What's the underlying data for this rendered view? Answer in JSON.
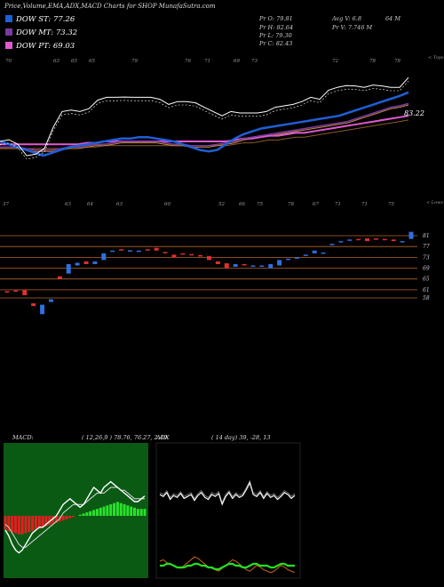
{
  "header": {
    "title": "Price,Volume,EMA,ADX,MACD Charts for SHOP MunafaSutra.com"
  },
  "legend": [
    {
      "label": "DOW ST: 77.26",
      "color": "#1f5fd6"
    },
    {
      "label": "DOW MT: 73.32",
      "color": "#7a3aa0"
    },
    {
      "label": "DOW PT: 69.03",
      "color": "#e05ad0"
    }
  ],
  "stats": {
    "pr_o": "Pr  O: 79.81",
    "pr_h": "Pr  H: 82.64",
    "pr_l": "Pr  L: 79.30",
    "pr_c": "Pr  C: 82.43",
    "avg_v": "Avg V: 6.8",
    "m1": "64  M",
    "pr_v": "Pr  V: 7.746  M"
  },
  "top_chart": {
    "right_tag": "< Tops",
    "price_label": "83.22",
    "top_labels": [
      "70",
      "63",
      "65",
      "65",
      "79",
      "76",
      "71",
      "69",
      "73",
      "72",
      "78",
      "78"
    ],
    "bottom_tag": "< Lows",
    "bottom_labels": [
      "37",
      "63",
      "64",
      "63",
      "60",
      "52",
      "66",
      "75",
      "78",
      "67",
      "71",
      "71",
      "75"
    ]
  },
  "candles_chart": {
    "right_levels": [
      "81",
      "77",
      "73",
      "69",
      "65",
      "61",
      "58"
    ]
  },
  "macd": {
    "label": "MACD:",
    "values": "( 12,26,9 ) 78.76,  76.27,  2.49"
  },
  "adx": {
    "label": "ADX",
    "values": "( 14  day) 39,  -28,  13"
  },
  "chart_data": [
    {
      "type": "line",
      "title": "Price,Volume,EMA,ADX,MACD Charts for SHOP MunafaSutra.com",
      "series": [
        {
          "name": "DOW ST: 77.26",
          "values": [
            60,
            59,
            58,
            57,
            56,
            55,
            56,
            57,
            58,
            58.5,
            59,
            59.5,
            60,
            60.5,
            61,
            61,
            61.5,
            61.5,
            61,
            60.5,
            60,
            59,
            58,
            57,
            56.5,
            57,
            59,
            61,
            62.5,
            63.5,
            64.5,
            65,
            65.5,
            66,
            66.5,
            67,
            67.5,
            68,
            68.5,
            69,
            70,
            71,
            72,
            73,
            74,
            75,
            76,
            77.26
          ]
        },
        {
          "name": "DOW MT: 73.32",
          "values": [
            58,
            58,
            58,
            57.5,
            57,
            57,
            57,
            57.5,
            58,
            58,
            58.5,
            59,
            59,
            59.5,
            60,
            60,
            60,
            60,
            60,
            59.5,
            59,
            59,
            58.5,
            58.5,
            58.5,
            59,
            59.5,
            60,
            61,
            61.5,
            62,
            62.5,
            63,
            63.5,
            64,
            64.5,
            65,
            65.5,
            66,
            66.5,
            67,
            68,
            69,
            70,
            71,
            72,
            72.5,
            73.32
          ]
        },
        {
          "name": "DOW PT: 69.03",
          "values": [
            59,
            59,
            59,
            59,
            59,
            59,
            59,
            59,
            59,
            59,
            59.5,
            59.5,
            60,
            60,
            60,
            60,
            60,
            60,
            60,
            60,
            60,
            60,
            60,
            60,
            60,
            60,
            60,
            60.5,
            61,
            61,
            61.5,
            62,
            62,
            62.5,
            63,
            63,
            63.5,
            64,
            64.5,
            65,
            65.5,
            66,
            66.5,
            67,
            67.5,
            68,
            68.5,
            69.03
          ]
        }
      ],
      "candles": [
        {
          "o": 60.5,
          "c": 60.0
        },
        {
          "o": 60.8,
          "c": 60.6
        },
        {
          "o": 61.0,
          "c": 59.0
        },
        {
          "o": 56.0,
          "c": 55.0
        },
        {
          "o": 52.0,
          "c": 55.5
        },
        {
          "o": 56.5,
          "c": 57.5
        },
        {
          "o": 66.0,
          "c": 65.0
        },
        {
          "o": 67.0,
          "c": 70.5
        },
        {
          "o": 70.0,
          "c": 71.0
        },
        {
          "o": 71.5,
          "c": 70.5
        },
        {
          "o": 70.5,
          "c": 71.5
        },
        {
          "o": 72.0,
          "c": 74.5
        },
        {
          "o": 75.0,
          "c": 75.5
        },
        {
          "o": 76.0,
          "c": 75.5
        },
        {
          "o": 75.5,
          "c": 75.6
        },
        {
          "o": 75.0,
          "c": 75.5
        },
        {
          "o": 76.0,
          "c": 75.5
        },
        {
          "o": 76.5,
          "c": 75.5
        },
        {
          "o": 75.0,
          "c": 74.8
        },
        {
          "o": 74.0,
          "c": 73.0
        },
        {
          "o": 74.5,
          "c": 74.0
        },
        {
          "o": 74.2,
          "c": 74.0
        },
        {
          "o": 73.8,
          "c": 73.6
        },
        {
          "o": 73.5,
          "c": 72.0
        },
        {
          "o": 71.5,
          "c": 70.5
        },
        {
          "o": 70.8,
          "c": 69.0
        },
        {
          "o": 69.5,
          "c": 70.5
        },
        {
          "o": 70.5,
          "c": 70.0
        },
        {
          "o": 70.0,
          "c": 70.0
        },
        {
          "o": 70.0,
          "c": 70.0
        },
        {
          "o": 69.0,
          "c": 70.5
        },
        {
          "o": 70.0,
          "c": 72.0
        },
        {
          "o": 72.5,
          "c": 72.5
        },
        {
          "o": 72.5,
          "c": 73.0
        },
        {
          "o": 73.5,
          "c": 74.0
        },
        {
          "o": 74.5,
          "c": 75.5
        },
        {
          "o": 74.8,
          "c": 74.8
        },
        {
          "o": 77.5,
          "c": 78.0
        },
        {
          "o": 79.0,
          "c": 79.0
        },
        {
          "o": 79.5,
          "c": 79.6
        },
        {
          "o": 79.8,
          "c": 79.5
        },
        {
          "o": 80.0,
          "c": 79.0
        },
        {
          "o": 80.0,
          "c": 79.8
        },
        {
          "o": 79.8,
          "c": 79.5
        },
        {
          "o": 79.6,
          "c": 79.0
        },
        {
          "o": 78.8,
          "c": 79.0
        },
        {
          "o": 79.81,
          "c": 82.43
        }
      ],
      "levels": [
        81,
        77,
        73,
        69,
        65,
        61,
        58
      ]
    },
    {
      "type": "bar",
      "title": "MACD",
      "histogram": [
        -6,
        -6.5,
        -7,
        -7.5,
        -8,
        -8,
        -7.5,
        -7,
        -6.5,
        -6,
        -5.5,
        -5,
        -4.5,
        -4,
        -3.5,
        -3,
        -2.5,
        -2,
        -1.5,
        -1,
        -0.5,
        0,
        0.5,
        1,
        1.5,
        2,
        2.5,
        3,
        3.5,
        4,
        4.5,
        5,
        5.5,
        6,
        5.5,
        5,
        4.5,
        4,
        3.5,
        3,
        3,
        3
      ],
      "macd": [
        -5,
        -7,
        -10,
        -12,
        -13,
        -12,
        -10,
        -8,
        -6,
        -5,
        -4,
        -4,
        -3,
        -2,
        -1,
        0,
        2,
        4,
        5,
        6,
        5,
        4,
        3,
        4,
        6,
        8,
        10,
        9,
        8,
        10,
        11,
        12,
        11,
        10,
        9,
        8,
        7,
        6,
        5,
        5,
        6,
        7
      ],
      "signal": [
        -3,
        -4,
        -6,
        -8,
        -10,
        -11,
        -11,
        -10,
        -9,
        -8,
        -7,
        -6,
        -5,
        -4,
        -3,
        -2,
        -1,
        1,
        2,
        3,
        4,
        4,
        4,
        4,
        5,
        6,
        7,
        8,
        8,
        8,
        9,
        10,
        10,
        10,
        9,
        9,
        8,
        7,
        6,
        6,
        6,
        6
      ]
    },
    {
      "type": "line",
      "title": "ADX",
      "series": [
        {
          "values": [
            40,
            38,
            42,
            35,
            39,
            37,
            41,
            36,
            38,
            40,
            34,
            39,
            42,
            37,
            35,
            40,
            38,
            41,
            30,
            38,
            42,
            36,
            40,
            37,
            39,
            45,
            52,
            40,
            38,
            42,
            36,
            41,
            37,
            39,
            35,
            38,
            42,
            40,
            36,
            39
          ]
        },
        {
          "values": [
            15,
            16,
            14,
            13,
            12,
            11,
            10,
            12,
            14,
            16,
            18,
            17,
            15,
            13,
            11,
            10,
            9,
            8,
            10,
            12,
            14,
            16,
            15,
            13,
            11,
            9,
            8,
            10,
            12,
            11,
            9,
            8,
            7,
            8,
            10,
            12,
            11,
            9,
            8,
            7
          ]
        },
        {
          "values": [
            6,
            6,
            7,
            7,
            6,
            5,
            5,
            5,
            6,
            6,
            7,
            7,
            6,
            6,
            5,
            5,
            4,
            4,
            5,
            6,
            7,
            7,
            6,
            6,
            5,
            5,
            6,
            7,
            7,
            6,
            6,
            6,
            5,
            5,
            6,
            7,
            7,
            6,
            6,
            6
          ]
        }
      ]
    }
  ]
}
